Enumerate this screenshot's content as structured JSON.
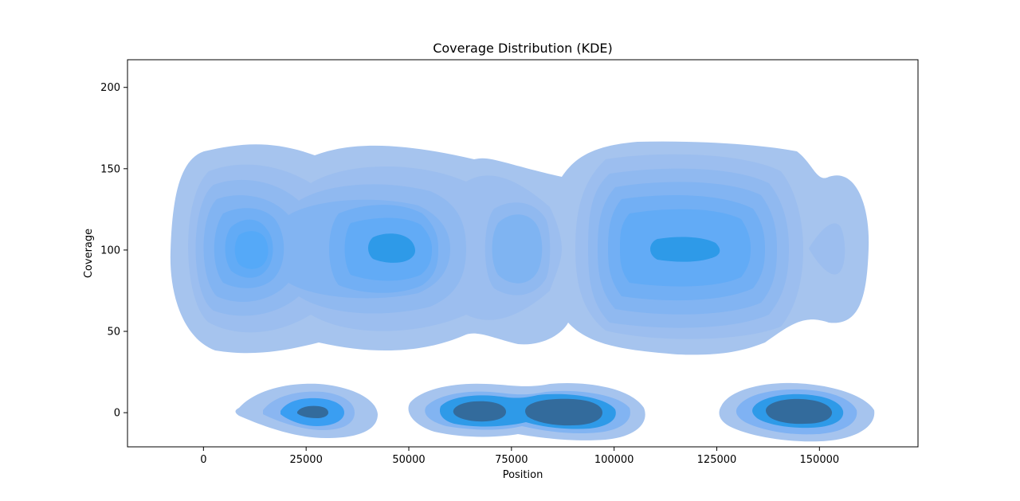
{
  "chart_data": {
    "type": "kde",
    "title": "Coverage Distribution (KDE)",
    "xlabel": "Position",
    "ylabel": "Coverage",
    "xlim": [
      -18500,
      174000
    ],
    "ylim": [
      -21,
      217
    ],
    "xticks": [
      0,
      25000,
      50000,
      75000,
      100000,
      125000,
      150000
    ],
    "yticks": [
      0,
      50,
      100,
      150,
      200
    ],
    "colors": [
      "#a6c4ee",
      "#9cbeef",
      "#90b9f0",
      "#82b4f2",
      "#72aff4",
      "#62abf6",
      "#50a7f7",
      "#2e9ae8",
      "#336b9c"
    ],
    "density_peaks": [
      {
        "x": 12000,
        "y": 100,
        "level": 7
      },
      {
        "x": 45000,
        "y": 100,
        "level": 8
      },
      {
        "x": 76000,
        "y": 100,
        "level": 5
      },
      {
        "x": 117000,
        "y": 100,
        "level": 8
      },
      {
        "x": 155000,
        "y": 100,
        "level": 2
      },
      {
        "x": 26000,
        "y": 0,
        "level": 9
      },
      {
        "x": 67000,
        "y": 0,
        "level": 9
      },
      {
        "x": 88000,
        "y": 0,
        "level": 9
      },
      {
        "x": 144000,
        "y": 0,
        "level": 9
      }
    ]
  }
}
